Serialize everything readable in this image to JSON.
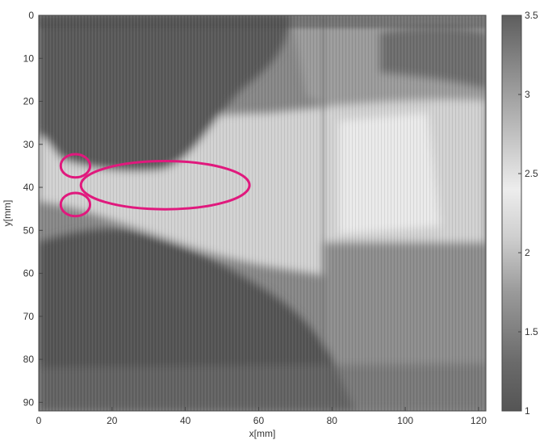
{
  "chart_data": {
    "type": "heatmap",
    "title": "",
    "xlabel": "x[mm]",
    "ylabel": "y[mm]",
    "xlim": [
      0,
      122
    ],
    "ylim": [
      0,
      92
    ],
    "y_axis_reversed": true,
    "x_ticks": [
      "0",
      "20",
      "40",
      "60",
      "80",
      "100",
      "120"
    ],
    "y_ticks": [
      "0",
      "10",
      "20",
      "30",
      "40",
      "50",
      "60",
      "70",
      "80",
      "90"
    ],
    "colorbar": {
      "range": [
        1,
        3.5
      ],
      "ticks": [
        "1",
        "1.5",
        "2",
        "2.5",
        "3",
        "3.5"
      ],
      "colormap": "grayscale: dark at 1, lightest near 2.3-2.5, darker again toward 3.5",
      "position": "right"
    },
    "grid": false,
    "regions": [
      {
        "description": "upper dark lobe",
        "approx_value": 1.2
      },
      {
        "description": "lower dark lobe",
        "approx_value": 1.2
      },
      {
        "description": "bright central plume from x=0 widening to the right",
        "approx_value": 2.4
      },
      {
        "description": "bright patch near x=90-105, y=25-50",
        "approx_value": 2.5
      },
      {
        "description": "mid-grey region at upper right",
        "approx_value": 1.6
      }
    ],
    "annotations": [
      {
        "shape": "ellipse",
        "color": "#e0197d",
        "center": [
          10,
          35
        ],
        "radii": [
          4,
          2.7
        ]
      },
      {
        "shape": "ellipse",
        "color": "#e0197d",
        "center": [
          10,
          44
        ],
        "radii": [
          4,
          2.7
        ]
      },
      {
        "shape": "ellipse",
        "color": "#e0197d",
        "center": [
          34.5,
          39.5
        ],
        "radii": [
          23,
          5.6
        ]
      }
    ]
  }
}
